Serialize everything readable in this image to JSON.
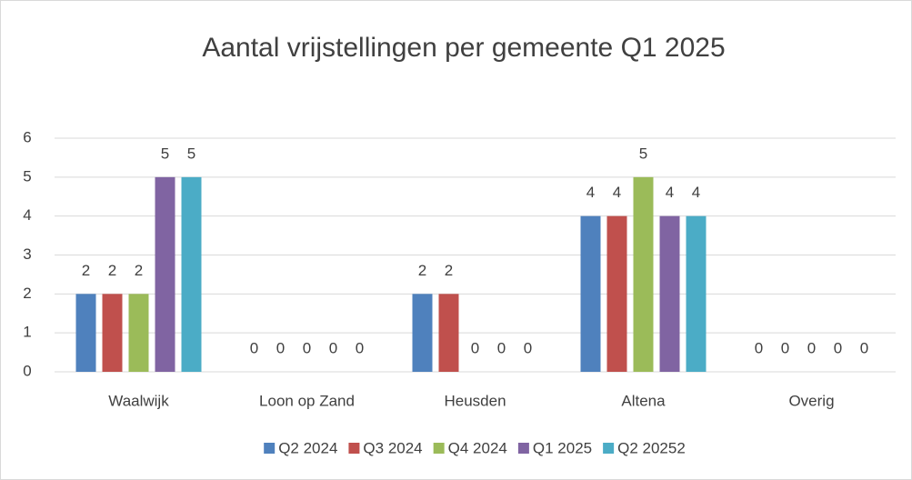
{
  "chart_data": {
    "type": "bar",
    "title": "Aantal vrijstellingen per gemeente Q1 2025",
    "categories": [
      "Waalwijk",
      "Loon op Zand",
      "Heusden",
      "Altena",
      "Overig"
    ],
    "series": [
      {
        "name": "Q2 2024",
        "color": "#4f81bd",
        "values": [
          2,
          0,
          2,
          4,
          0
        ]
      },
      {
        "name": "Q3 2024",
        "color": "#c0504d",
        "values": [
          2,
          0,
          2,
          4,
          0
        ]
      },
      {
        "name": "Q4 2024",
        "color": "#9bbb59",
        "values": [
          2,
          0,
          0,
          5,
          0
        ]
      },
      {
        "name": "Q1 2025",
        "color": "#8064a2",
        "values": [
          5,
          0,
          0,
          4,
          0
        ]
      },
      {
        "name": "Q2 20252",
        "color": "#4bacc6",
        "values": [
          5,
          0,
          0,
          4,
          0
        ]
      }
    ],
    "ylim": [
      0,
      6
    ],
    "yticks": [
      0,
      1,
      2,
      3,
      4,
      5,
      6
    ],
    "grid": true,
    "legend": "bottom"
  }
}
